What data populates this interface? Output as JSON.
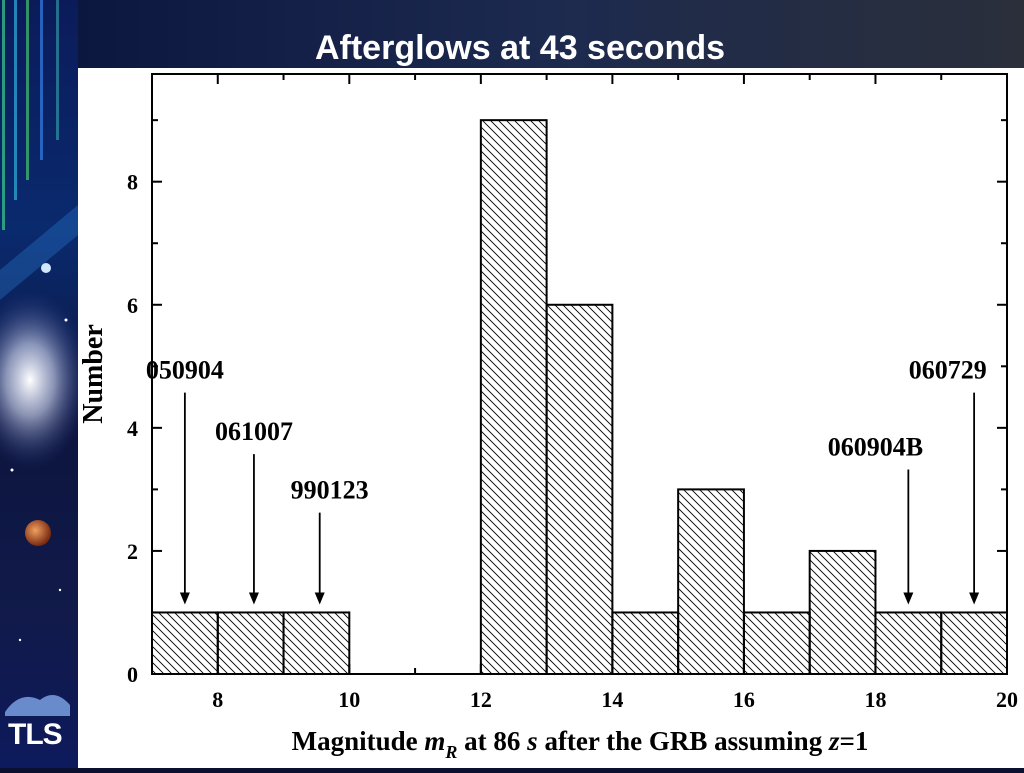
{
  "slide": {
    "title": "Afterglows at 43 seconds",
    "logo_text": "TLS"
  },
  "chart_data": {
    "type": "bar",
    "title": "",
    "xlabel": {
      "pre": "Magnitude ",
      "m": "m",
      "sub": "R",
      "mid": " at 86 ",
      "s": "s",
      "post": " after the GRB assuming ",
      "z": "z",
      "end": "=1"
    },
    "ylabel": "Number",
    "xlim": [
      7,
      20
    ],
    "ylim": [
      0,
      9.75
    ],
    "xticks": [
      "8",
      "10",
      "12",
      "14",
      "16",
      "18",
      "20"
    ],
    "yticks": [
      "0",
      "2",
      "4",
      "6",
      "8"
    ],
    "bin_width": 1,
    "bins": [
      {
        "start": 7,
        "value": 1
      },
      {
        "start": 8,
        "value": 1
      },
      {
        "start": 9,
        "value": 1
      },
      {
        "start": 12,
        "value": 9
      },
      {
        "start": 13,
        "value": 6
      },
      {
        "start": 14,
        "value": 1
      },
      {
        "start": 15,
        "value": 3
      },
      {
        "start": 16,
        "value": 1
      },
      {
        "start": 17,
        "value": 2
      },
      {
        "start": 18,
        "value": 1
      },
      {
        "start": 19,
        "value": 1
      }
    ],
    "annotations": [
      {
        "label": "050904",
        "x": 7.5
      },
      {
        "label": "061007",
        "x": 8.55
      },
      {
        "label": "990123",
        "x": 9.55
      },
      {
        "label": "060904B",
        "x": 18.5
      },
      {
        "label": "060729",
        "x": 19.5
      }
    ]
  }
}
